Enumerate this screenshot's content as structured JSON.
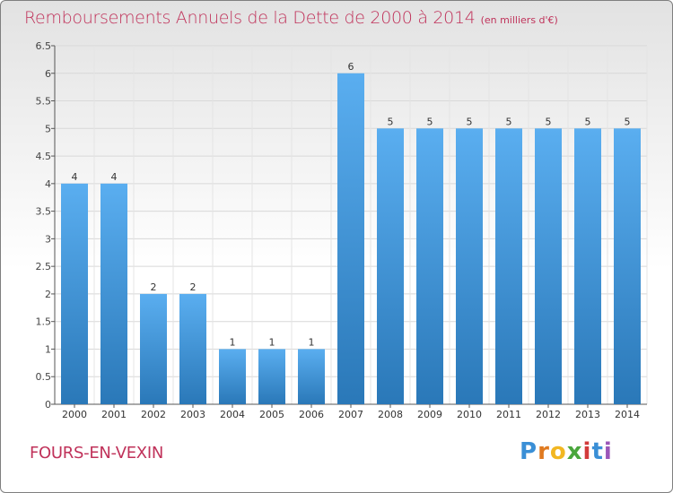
{
  "header": {
    "title": "Remboursements Annuels de la Dette de 2000 à 2014",
    "unit": "(en milliers d'€)"
  },
  "footer": {
    "commune": "FOURS-EN-VEXIN",
    "logo": "Proxiti",
    "logo_letters": [
      "P",
      "r",
      "o",
      "x",
      "i",
      "t",
      "i"
    ]
  },
  "colors": {
    "bar_top": "#5aaef0",
    "bar_bottom": "#2a78b8",
    "title": "#c0325a"
  },
  "chart_data": {
    "type": "bar",
    "title": "Remboursements Annuels de la Dette de 2000 à 2014",
    "ylabel": "",
    "xlabel": "",
    "categories": [
      "2000",
      "2001",
      "2002",
      "2003",
      "2004",
      "2005",
      "2006",
      "2007",
      "2008",
      "2009",
      "2010",
      "2011",
      "2012",
      "2013",
      "2014"
    ],
    "values": [
      4,
      4,
      2,
      2,
      1,
      1,
      1,
      6,
      5,
      5,
      5,
      5,
      5,
      5,
      5
    ],
    "data_labels": [
      "4",
      "4",
      "2",
      "2",
      "1",
      "1",
      "1",
      "6",
      "5",
      "5",
      "5",
      "5",
      "5",
      "5",
      "5"
    ],
    "ylim": [
      0,
      6.5
    ],
    "yticks": [
      0,
      0.5,
      1,
      1.5,
      2,
      2.5,
      3,
      3.5,
      4,
      4.5,
      5,
      5.5,
      6,
      6.5
    ],
    "ytick_labels": [
      "0",
      "0.5",
      "1",
      "1.5",
      "2",
      "2.5",
      "3",
      "3.5",
      "4",
      "4.5",
      "5",
      "5.5",
      "6",
      "6.5"
    ],
    "grid": true
  }
}
